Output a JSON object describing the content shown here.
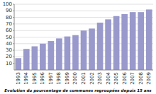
{
  "chart_data": {
    "type": "bar",
    "title": "Evolution du pourcentage de communes regroupées depuis 15 ans",
    "categories": [
      "1993",
      "1994",
      "1995",
      "1996",
      "1997",
      "1998",
      "1999",
      "2000",
      "2001",
      "2002",
      "2003",
      "2004",
      "2005",
      "2006",
      "2007",
      "2008",
      "2009"
    ],
    "values": [
      18,
      32,
      36,
      40,
      44,
      48,
      51,
      53,
      60,
      63,
      72,
      77,
      82,
      85,
      88,
      88,
      92
    ],
    "color": "#9999cc",
    "ylim": [
      0,
      100
    ],
    "yticks": [
      10,
      20,
      30,
      40,
      50,
      60,
      70,
      80,
      90,
      100
    ],
    "grid": true
  }
}
